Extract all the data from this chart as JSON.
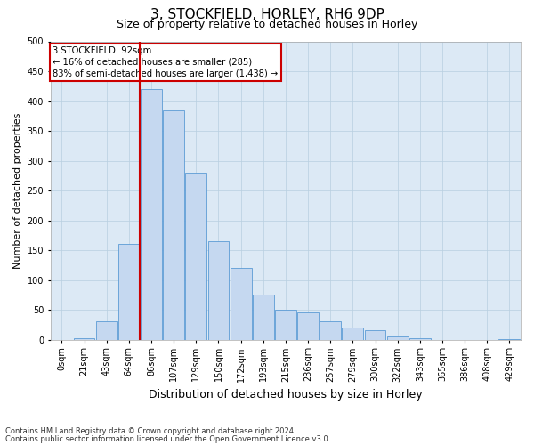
{
  "title1": "3, STOCKFIELD, HORLEY, RH6 9DP",
  "title2": "Size of property relative to detached houses in Horley",
  "xlabel": "Distribution of detached houses by size in Horley",
  "ylabel": "Number of detached properties",
  "annotation_line1": "3 STOCKFIELD: 92sqm",
  "annotation_line2": "← 16% of detached houses are smaller (285)",
  "annotation_line3": "83% of semi-detached houses are larger (1,438) →",
  "footnote1": "Contains HM Land Registry data © Crown copyright and database right 2024.",
  "footnote2": "Contains public sector information licensed under the Open Government Licence v3.0.",
  "bar_labels": [
    "0sqm",
    "21sqm",
    "43sqm",
    "64sqm",
    "86sqm",
    "107sqm",
    "129sqm",
    "150sqm",
    "172sqm",
    "193sqm",
    "215sqm",
    "236sqm",
    "257sqm",
    "279sqm",
    "300sqm",
    "322sqm",
    "343sqm",
    "365sqm",
    "386sqm",
    "408sqm",
    "429sqm"
  ],
  "bar_values": [
    0,
    2,
    30,
    160,
    420,
    385,
    280,
    165,
    120,
    75,
    50,
    45,
    30,
    20,
    15,
    5,
    2,
    0,
    0,
    0,
    1
  ],
  "bar_color": "#c5d8f0",
  "bar_edge_color": "#5b9bd5",
  "red_line_index": 4,
  "red_line_color": "#cc0000",
  "ylim": [
    0,
    500
  ],
  "yticks": [
    0,
    50,
    100,
    150,
    200,
    250,
    300,
    350,
    400,
    450,
    500
  ],
  "background_color": "#ffffff",
  "axes_bg_color": "#dce9f5",
  "grid_color": "#b8cfe0",
  "annotation_box_color": "#cc0000",
  "title1_fontsize": 11,
  "title2_fontsize": 9,
  "ylabel_fontsize": 8,
  "xlabel_fontsize": 9,
  "tick_fontsize": 7,
  "footnote_fontsize": 6
}
